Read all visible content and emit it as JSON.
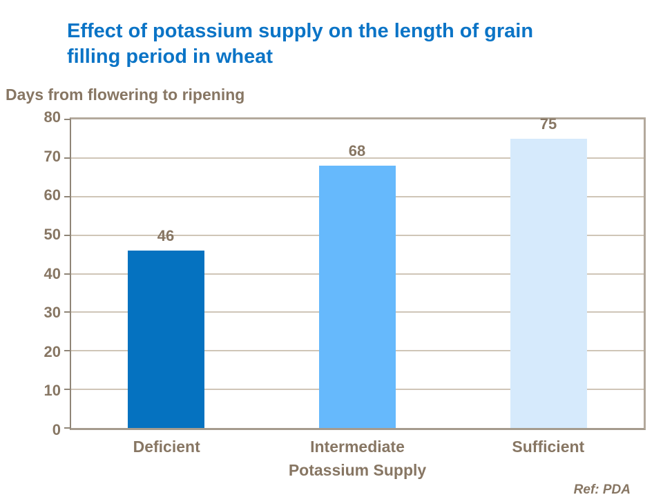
{
  "page": {
    "title_line1": "Effect of potassium supply on the length of grain",
    "title_line2": "filling period in wheat",
    "ref_note": "Ref: PDA"
  },
  "axes": {
    "y_title": "Days from flowering to ripening",
    "x_title": "Potassium Supply",
    "y_ticks": [
      0,
      10,
      20,
      30,
      40,
      50,
      60,
      70,
      80
    ]
  },
  "chart_data": {
    "type": "bar",
    "title": "Effect of potassium supply on the length of grain filling period in wheat",
    "categories": [
      "Deficient",
      "Intermediate",
      "Sufficient"
    ],
    "values": [
      46,
      68,
      75
    ],
    "bar_colors": [
      "#0572c0",
      "#66b9fc",
      "#d6eafc"
    ],
    "xlabel": "Potassium Supply",
    "ylabel": "Days from flowering to ripening",
    "ylim": [
      0,
      80
    ],
    "ytick_step": 10,
    "grid": true,
    "legend_position": "none",
    "value_labels_shown": true
  },
  "colors": {
    "title_text": "#0b74c6",
    "axis_text": "#877663",
    "grid_line": "#cfc5b7",
    "plot_border": "#b3a99c",
    "axis_line": "#8f8577",
    "background": "#ffffff"
  }
}
